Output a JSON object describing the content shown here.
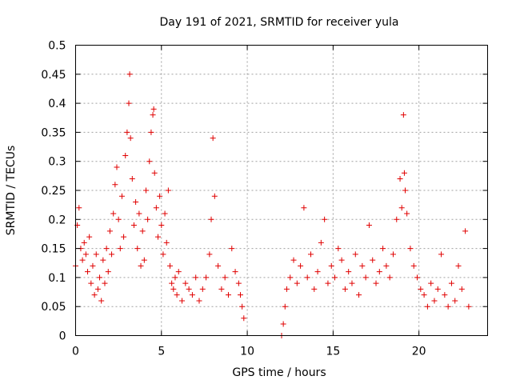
{
  "chart_data": {
    "type": "scatter",
    "title": "Day 191 of 2021, SRMTID for receiver yula",
    "xlabel": "GPS time / hours",
    "ylabel": "SRMTID / TECUs",
    "xlim": [
      0,
      24
    ],
    "ylim": [
      0,
      0.5
    ],
    "grid": true,
    "marker": "+",
    "color": "#e00000",
    "xticks": [
      0,
      5,
      10,
      15,
      20
    ],
    "xtick_labels": [
      "0",
      "5",
      "10",
      "15",
      "20"
    ],
    "yticks": [
      0,
      0.05,
      0.1,
      0.15,
      0.2,
      0.25,
      0.3,
      0.35,
      0.4,
      0.45,
      0.5
    ],
    "ytick_labels": [
      "0",
      "0.05",
      "0.1",
      "0.15",
      "0.2",
      "0.25",
      "0.3",
      "0.35",
      "0.4",
      "0.45",
      "0.5"
    ],
    "series": [
      {
        "name": "SRMTID",
        "x": [
          0.0,
          0.1,
          0.2,
          0.3,
          0.4,
          0.5,
          0.6,
          0.7,
          0.8,
          0.9,
          1.0,
          1.1,
          1.2,
          1.3,
          1.4,
          1.5,
          1.6,
          1.7,
          1.8,
          1.9,
          2.0,
          2.1,
          2.2,
          2.3,
          2.4,
          2.5,
          2.6,
          2.7,
          2.8,
          2.9,
          3.0,
          3.1,
          3.15,
          3.2,
          3.3,
          3.4,
          3.5,
          3.6,
          3.7,
          3.8,
          3.9,
          4.0,
          4.1,
          4.2,
          4.3,
          4.4,
          4.5,
          4.55,
          4.6,
          4.7,
          4.8,
          4.9,
          5.0,
          5.1,
          5.2,
          5.3,
          5.4,
          5.5,
          5.6,
          5.7,
          5.8,
          5.9,
          6.0,
          6.2,
          6.4,
          6.6,
          6.8,
          7.0,
          7.2,
          7.4,
          7.6,
          7.8,
          7.9,
          8.0,
          8.1,
          8.3,
          8.5,
          8.7,
          8.9,
          9.1,
          9.3,
          9.5,
          9.6,
          9.7,
          9.8,
          12.0,
          12.1,
          12.2,
          12.3,
          12.5,
          12.7,
          12.9,
          13.1,
          13.3,
          13.5,
          13.7,
          13.9,
          14.1,
          14.3,
          14.5,
          14.7,
          14.9,
          15.1,
          15.3,
          15.5,
          15.7,
          15.9,
          16.1,
          16.3,
          16.5,
          16.7,
          16.9,
          17.1,
          17.3,
          17.5,
          17.7,
          17.9,
          18.1,
          18.3,
          18.5,
          18.7,
          18.9,
          19.0,
          19.1,
          19.15,
          19.2,
          19.3,
          19.5,
          19.7,
          19.9,
          20.1,
          20.3,
          20.5,
          20.7,
          20.9,
          21.1,
          21.3,
          21.5,
          21.7,
          21.9,
          22.1,
          22.3,
          22.5,
          22.7,
          22.9
        ],
        "y": [
          0.12,
          0.19,
          0.22,
          0.15,
          0.13,
          0.16,
          0.14,
          0.11,
          0.17,
          0.09,
          0.12,
          0.07,
          0.14,
          0.08,
          0.1,
          0.06,
          0.13,
          0.09,
          0.15,
          0.11,
          0.18,
          0.14,
          0.21,
          0.26,
          0.29,
          0.2,
          0.15,
          0.24,
          0.17,
          0.31,
          0.35,
          0.4,
          0.45,
          0.34,
          0.27,
          0.19,
          0.23,
          0.15,
          0.21,
          0.12,
          0.18,
          0.13,
          0.25,
          0.2,
          0.3,
          0.35,
          0.38,
          0.39,
          0.28,
          0.22,
          0.17,
          0.24,
          0.19,
          0.14,
          0.21,
          0.16,
          0.25,
          0.12,
          0.09,
          0.08,
          0.1,
          0.07,
          0.11,
          0.06,
          0.09,
          0.08,
          0.07,
          0.1,
          0.06,
          0.08,
          0.1,
          0.14,
          0.2,
          0.34,
          0.24,
          0.12,
          0.08,
          0.1,
          0.07,
          0.15,
          0.11,
          0.09,
          0.07,
          0.05,
          0.03,
          0.0,
          0.02,
          0.05,
          0.08,
          0.1,
          0.13,
          0.09,
          0.12,
          0.22,
          0.1,
          0.14,
          0.08,
          0.11,
          0.16,
          0.2,
          0.09,
          0.12,
          0.1,
          0.15,
          0.13,
          0.08,
          0.11,
          0.09,
          0.14,
          0.07,
          0.12,
          0.1,
          0.19,
          0.13,
          0.09,
          0.11,
          0.15,
          0.12,
          0.1,
          0.14,
          0.2,
          0.27,
          0.22,
          0.38,
          0.28,
          0.25,
          0.21,
          0.15,
          0.12,
          0.1,
          0.08,
          0.07,
          0.05,
          0.09,
          0.06,
          0.08,
          0.14,
          0.07,
          0.05,
          0.09,
          0.06,
          0.12,
          0.08,
          0.18,
          0.05
        ]
      }
    ]
  }
}
